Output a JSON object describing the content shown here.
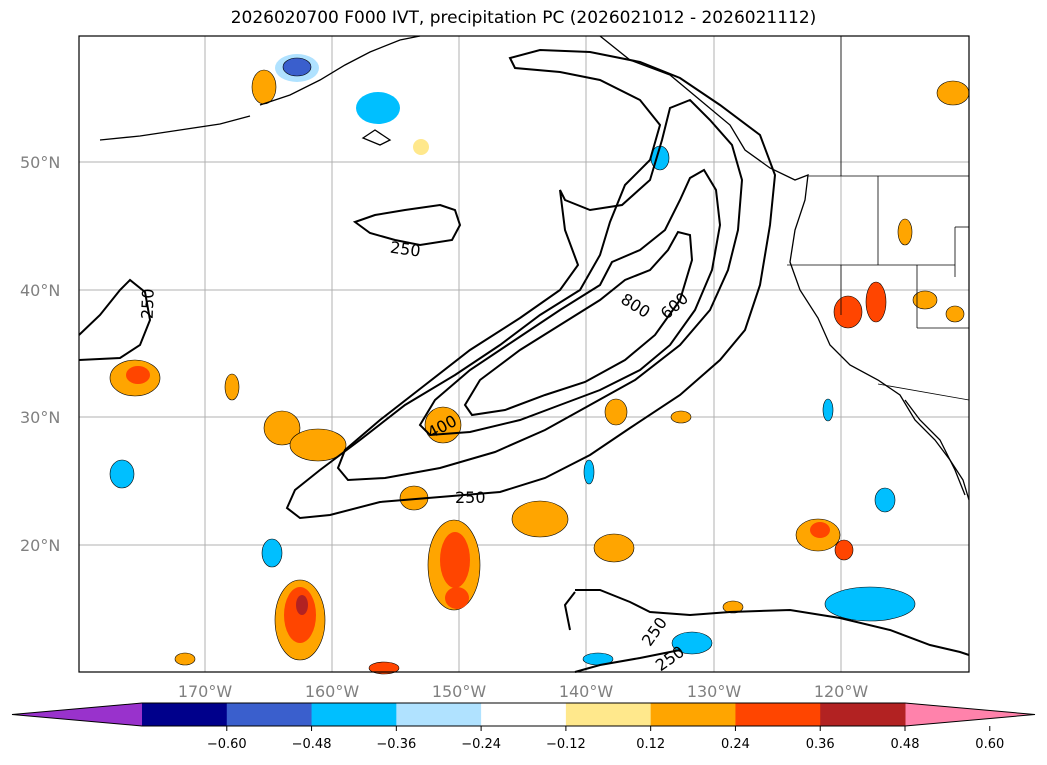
{
  "title": "2026020700 F000 IVT, precipitation PC (2026021012 - 2026021112)",
  "axes": {
    "lat_ticks": [
      "50°N",
      "40°N",
      "30°N",
      "20°N"
    ],
    "lon_ticks": [
      "170°W",
      "160°W",
      "150°W",
      "140°W",
      "130°W",
      "120°W"
    ]
  },
  "contour_labels": [
    "250",
    "250",
    "400",
    "600",
    "800",
    "250",
    "250",
    "250"
  ],
  "colorbar": {
    "ticks": [
      "−0.60",
      "−0.48",
      "−0.36",
      "−0.24",
      "−0.12",
      "0.12",
      "0.24",
      "0.36",
      "0.48",
      "0.60"
    ],
    "colors": [
      "#9932CC",
      "#00008B",
      "#3A5FCD",
      "#00BFFF",
      "#B0E2FF",
      "#FFFFFF",
      "#FFE88C",
      "#FFA500",
      "#FF4500",
      "#B22222",
      "#FF82AB"
    ]
  },
  "colors": {
    "gridline": "#b0b0b0",
    "coast": "#000000"
  }
}
